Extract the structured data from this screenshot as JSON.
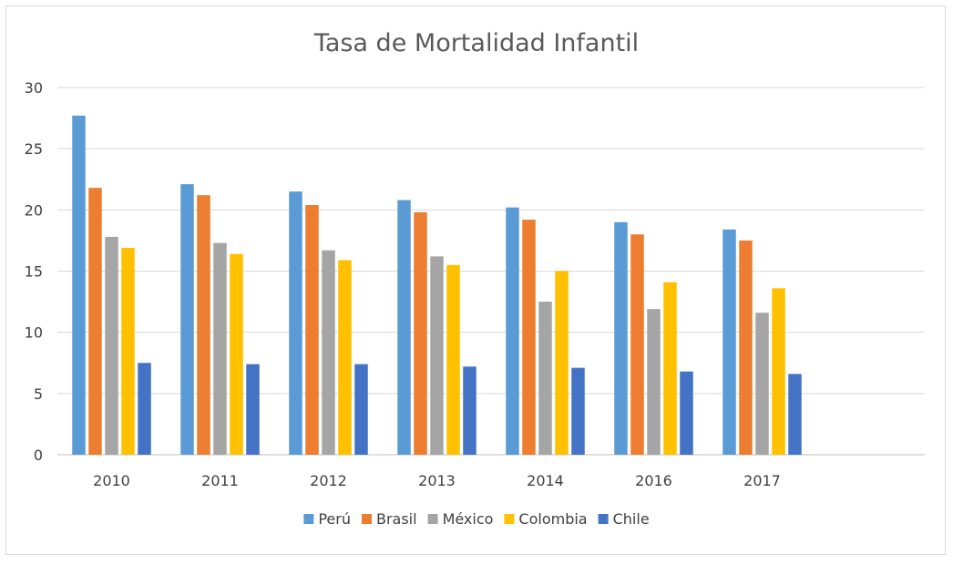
{
  "chart_data": {
    "type": "bar",
    "title": "Tasa de Mortalidad Infantil",
    "xlabel": "",
    "ylabel": "",
    "categories": [
      "2010",
      "2011",
      "2012",
      "2013",
      "2014",
      "2016",
      "2017",
      ""
    ],
    "ylim": [
      0,
      30
    ],
    "yticks": [
      0,
      5,
      10,
      15,
      20,
      25,
      30
    ],
    "grid": true,
    "legend_position": "bottom",
    "series": [
      {
        "name": "Perú",
        "color": "#5B9BD5",
        "values": [
          27.7,
          22.1,
          21.5,
          20.8,
          20.2,
          19.0,
          18.4,
          null
        ]
      },
      {
        "name": "Brasil",
        "color": "#ED7D31",
        "values": [
          21.8,
          21.2,
          20.4,
          19.8,
          19.2,
          18.0,
          17.5,
          null
        ]
      },
      {
        "name": "México",
        "color": "#A5A5A5",
        "values": [
          17.8,
          17.3,
          16.7,
          16.2,
          12.5,
          11.9,
          11.6,
          null
        ]
      },
      {
        "name": "Colombia",
        "color": "#FFC000",
        "values": [
          16.9,
          16.4,
          15.9,
          15.5,
          15.0,
          14.1,
          13.6,
          null
        ]
      },
      {
        "name": "Chile",
        "color": "#4472C4",
        "values": [
          7.5,
          7.4,
          7.4,
          7.2,
          7.1,
          6.8,
          6.6,
          null
        ]
      }
    ]
  }
}
